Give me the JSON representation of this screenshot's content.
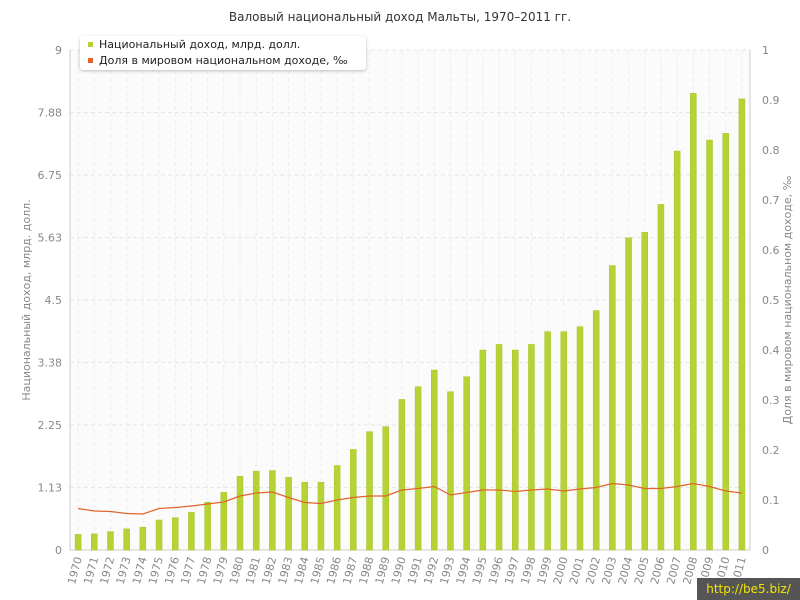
{
  "chart_data": {
    "type": "bar",
    "title": "Валовый национальный доход Мальты, 1970–2011 гг.",
    "categories": [
      "1970",
      "1971",
      "1972",
      "1973",
      "1974",
      "1975",
      "1976",
      "1977",
      "1978",
      "1979",
      "1980",
      "1981",
      "1982",
      "1983",
      "1984",
      "1985",
      "1986",
      "1987",
      "1988",
      "1989",
      "1990",
      "1991",
      "1992",
      "1993",
      "1994",
      "1995",
      "1996",
      "1997",
      "1998",
      "1999",
      "2000",
      "2001",
      "2002",
      "2003",
      "2004",
      "2005",
      "2006",
      "2007",
      "2008",
      "2009",
      "2010",
      "2011"
    ],
    "series": [
      {
        "name": "Национальный доход, млрд. долл.",
        "type": "bar",
        "axis": "left",
        "color": "#b5d334",
        "values": [
          0.28,
          0.29,
          0.33,
          0.38,
          0.41,
          0.54,
          0.58,
          0.68,
          0.86,
          1.04,
          1.33,
          1.42,
          1.43,
          1.31,
          1.22,
          1.22,
          1.52,
          1.81,
          2.13,
          2.22,
          2.71,
          2.94,
          3.24,
          2.85,
          3.12,
          3.6,
          3.7,
          3.6,
          3.7,
          3.93,
          3.93,
          4.02,
          4.31,
          5.12,
          5.62,
          5.72,
          6.22,
          7.18,
          8.22,
          7.38,
          7.5,
          8.12
        ]
      },
      {
        "name": "Доля в мировом национальном доходе, ‰",
        "type": "line",
        "axis": "right",
        "color": "#e0642c",
        "values": [
          0.083,
          0.078,
          0.077,
          0.073,
          0.072,
          0.083,
          0.085,
          0.088,
          0.092,
          0.096,
          0.108,
          0.114,
          0.116,
          0.105,
          0.095,
          0.093,
          0.1,
          0.105,
          0.108,
          0.108,
          0.12,
          0.123,
          0.127,
          0.11,
          0.115,
          0.12,
          0.12,
          0.117,
          0.12,
          0.122,
          0.118,
          0.122,
          0.125,
          0.133,
          0.13,
          0.123,
          0.123,
          0.127,
          0.133,
          0.127,
          0.118,
          0.114
        ]
      }
    ],
    "ylabel_left": "Национальный доход, млрд. долл.",
    "ylabel_right": "Доля в мировом национальном доходе, ‰",
    "ylim_left": [
      0,
      9
    ],
    "ylim_right": [
      0,
      1
    ],
    "yticks_left": [
      "0",
      "1.13",
      "2.25",
      "3.38",
      "4.5",
      "5.63",
      "6.75",
      "7.88",
      "9"
    ],
    "yticks_right": [
      "0",
      "0.1",
      "0.2",
      "0.3",
      "0.4",
      "0.5",
      "0.6",
      "0.7",
      "0.8",
      "0.9",
      "1"
    ],
    "grid": true,
    "legend_position": "top-left"
  },
  "watermark": "http://be5.biz/"
}
